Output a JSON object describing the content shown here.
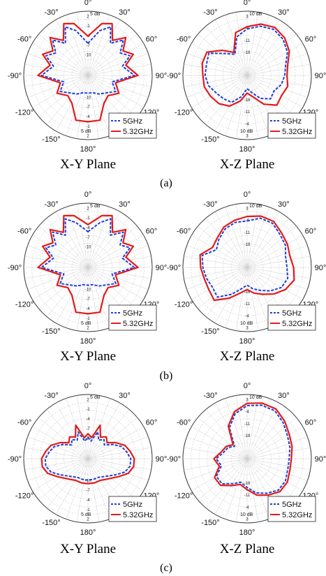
{
  "figure": {
    "row_labels": [
      "(a)",
      "(b)",
      "(c)"
    ],
    "plane_labels": [
      "X-Y  Plane",
      "X-Z  Plane"
    ],
    "angle_labels": [
      "0°",
      "30°",
      "60°",
      "90°",
      "120°",
      "180°",
      "-150°",
      "-120°",
      "-90°",
      "-60°",
      "-30°"
    ]
  },
  "chart_data": [
    {
      "type": "polar-line",
      "panel": "a",
      "plane": "X-Y  Plane",
      "r_unit_label": "5 dB",
      "r_tick_labels": [
        "2",
        "-1",
        "-4",
        "-7",
        "-10"
      ],
      "legend_placement": "bottom-right",
      "series": [
        {
          "name": "5GHz",
          "color": "#1f3fd6",
          "style": "dashed",
          "theta": [
            0,
            15,
            25,
            35,
            45,
            55,
            65,
            75,
            90,
            105,
            120,
            135,
            150,
            165,
            180,
            195,
            210,
            225,
            240,
            255,
            270,
            285,
            295,
            305,
            315,
            325,
            335,
            345
          ],
          "r_db": [
            -5,
            -1,
            1,
            -3,
            0,
            -3,
            -1,
            -4,
            -1,
            -7,
            -5,
            -7,
            -8,
            -9,
            -9,
            -9,
            -8,
            -7,
            -5,
            -7,
            -1,
            -4,
            -1,
            -3,
            0,
            -3,
            1,
            -1
          ]
        },
        {
          "name": "5.32GHz",
          "color": "#e21b1b",
          "style": "solid",
          "theta": [
            0,
            15,
            25,
            35,
            45,
            55,
            65,
            75,
            90,
            105,
            120,
            135,
            150,
            165,
            180,
            195,
            210,
            225,
            240,
            255,
            270,
            285,
            295,
            305,
            315,
            325,
            335,
            345
          ],
          "r_db": [
            -3,
            1,
            2,
            -2,
            1,
            -2,
            0,
            -3,
            0,
            -6,
            -4,
            -6,
            -5,
            -1,
            -1,
            -1,
            -5,
            -6,
            -4,
            -6,
            0,
            -3,
            0,
            -2,
            1,
            -2,
            2,
            1
          ]
        }
      ]
    },
    {
      "type": "polar-line",
      "panel": "a",
      "plane": "X-Z  Plane",
      "r_unit_label": "10 dB",
      "r_tick_labels": [
        "3",
        "-4",
        "-11",
        "-18"
      ],
      "legend_placement": "bottom-right",
      "series": [
        {
          "name": "5GHz",
          "color": "#1f3fd6",
          "style": "dashed",
          "theta": [
            0,
            15,
            30,
            45,
            60,
            75,
            90,
            105,
            120,
            135,
            150,
            165,
            180,
            195,
            210,
            225,
            240,
            255,
            270,
            285,
            300,
            315,
            330,
            345
          ],
          "r_db": [
            -3,
            -1,
            0,
            -1,
            -3,
            -6,
            -7,
            -8,
            -10,
            -9,
            -12,
            -16,
            -18,
            -14,
            -10,
            -9,
            -8,
            -6,
            -5,
            -5,
            -4,
            -10,
            -13,
            -6
          ]
        },
        {
          "name": "5.32GHz",
          "color": "#e21b1b",
          "style": "solid",
          "theta": [
            0,
            15,
            30,
            45,
            60,
            75,
            90,
            105,
            120,
            135,
            150,
            165,
            180,
            195,
            210,
            225,
            240,
            255,
            270,
            285,
            300,
            315,
            330,
            345
          ],
          "r_db": [
            -2,
            0,
            1,
            0,
            -2,
            -5,
            -6,
            -5,
            -6,
            -5,
            -9,
            -14,
            -16,
            -12,
            -8,
            -6,
            -5,
            -4,
            -4,
            -3,
            -3,
            -8,
            -12,
            -4
          ]
        }
      ]
    },
    {
      "type": "polar-line",
      "panel": "b",
      "plane": "X-Y  Plane",
      "r_unit_label": "5 dB",
      "r_tick_labels": [
        "2",
        "-1",
        "-4",
        "-7",
        "-10"
      ],
      "legend_placement": "bottom-right",
      "series": [
        {
          "name": "5GHz",
          "color": "#1f3fd6",
          "style": "dashed",
          "theta": [
            0,
            15,
            25,
            35,
            45,
            55,
            65,
            75,
            90,
            105,
            120,
            135,
            150,
            165,
            180,
            195,
            210,
            225,
            240,
            255,
            270,
            285,
            295,
            305,
            315,
            325,
            335,
            345
          ],
          "r_db": [
            -4,
            -1,
            1,
            -3,
            0,
            -3,
            -1,
            -4,
            -1,
            -7,
            -5,
            -7,
            -8,
            -9,
            -9,
            -9,
            -8,
            -7,
            -5,
            -7,
            -1,
            -4,
            -1,
            -3,
            0,
            -3,
            1,
            -1
          ]
        },
        {
          "name": "5.32GHz",
          "color": "#e21b1b",
          "style": "solid",
          "theta": [
            0,
            15,
            25,
            35,
            45,
            55,
            65,
            75,
            90,
            105,
            120,
            135,
            150,
            165,
            180,
            195,
            210,
            225,
            240,
            255,
            270,
            285,
            295,
            305,
            315,
            325,
            335,
            345
          ],
          "r_db": [
            -2,
            1,
            2,
            -2,
            1,
            -2,
            0,
            -3,
            0,
            -6,
            -4,
            -6,
            -5,
            -1,
            -1,
            -1,
            -5,
            -6,
            -4,
            -6,
            0,
            -3,
            0,
            -2,
            1,
            -2,
            2,
            1
          ]
        }
      ]
    },
    {
      "type": "polar-line",
      "panel": "b",
      "plane": "X-Z  Plane",
      "r_unit_label": "10 dB",
      "r_tick_labels": [
        "3",
        "-4",
        "-11",
        "-18"
      ],
      "legend_placement": "bottom-right",
      "series": [
        {
          "name": "5GHz",
          "color": "#1f3fd6",
          "style": "dashed",
          "theta": [
            0,
            15,
            30,
            45,
            60,
            75,
            90,
            105,
            120,
            135,
            150,
            165,
            180,
            195,
            210,
            225,
            240,
            255,
            270,
            285,
            300,
            315,
            330,
            345
          ],
          "r_db": [
            -3,
            -1,
            -1,
            -3,
            -4,
            -6,
            -6,
            -5,
            -6,
            -9,
            -12,
            -14,
            -16,
            -14,
            -10,
            -5,
            -6,
            -5,
            -4,
            -3,
            -8,
            -6,
            -4,
            -3
          ]
        },
        {
          "name": "5.32GHz",
          "color": "#e21b1b",
          "style": "solid",
          "theta": [
            0,
            15,
            30,
            45,
            60,
            75,
            90,
            105,
            120,
            135,
            150,
            165,
            180,
            195,
            210,
            225,
            240,
            255,
            270,
            285,
            300,
            315,
            330,
            345
          ],
          "r_db": [
            -1,
            0,
            0,
            -2,
            -3,
            -4,
            -3,
            -2,
            -4,
            -7,
            -10,
            -12,
            -14,
            -12,
            -8,
            -3,
            -4,
            -4,
            -3,
            -2,
            -6,
            -5,
            -3,
            -2
          ]
        }
      ]
    },
    {
      "type": "polar-line",
      "panel": "c",
      "plane": "X-Y  Plane",
      "r_unit_label": "5 dB",
      "r_tick_labels": [
        "2",
        "-1",
        "-4",
        "-7",
        "-10"
      ],
      "legend_placement": "bottom-right",
      "series": [
        {
          "name": "5GHz",
          "color": "#1f3fd6",
          "style": "dashed",
          "theta": [
            0,
            10,
            20,
            30,
            40,
            50,
            60,
            70,
            80,
            90,
            100,
            110,
            120,
            135,
            150,
            165,
            180,
            195,
            210,
            225,
            240,
            250,
            260,
            270,
            280,
            290,
            300,
            310,
            320,
            330,
            340,
            350
          ],
          "r_db": [
            -8,
            -9,
            -6,
            -8,
            -7,
            -8,
            -6,
            -4,
            -3,
            -2,
            -2,
            -3,
            -5,
            -7,
            -8,
            -8,
            -8,
            -8,
            -8,
            -7,
            -5,
            -3,
            -2,
            -2,
            -3,
            -4,
            -6,
            -8,
            -7,
            -8,
            -6,
            -9
          ]
        },
        {
          "name": "5.32GHz",
          "color": "#e21b1b",
          "style": "solid",
          "theta": [
            0,
            10,
            20,
            30,
            40,
            50,
            60,
            70,
            80,
            90,
            100,
            110,
            120,
            135,
            150,
            165,
            180,
            195,
            210,
            225,
            240,
            250,
            260,
            270,
            280,
            290,
            300,
            310,
            320,
            330,
            340,
            350
          ],
          "r_db": [
            -7,
            -8,
            -4,
            -7,
            -6,
            -7,
            -5,
            -3,
            -2,
            -1,
            -1,
            -2,
            -4,
            -6,
            -7,
            -7,
            -7,
            -7,
            -7,
            -6,
            -4,
            -2,
            -1,
            -1,
            -2,
            -3,
            -5,
            -7,
            -6,
            -7,
            -4,
            -8
          ]
        }
      ]
    },
    {
      "type": "polar-line",
      "panel": "c",
      "plane": "X-Z  Plane",
      "r_unit_label": "10 dB",
      "r_tick_labels": [
        "3",
        "-4",
        "-11",
        "-18"
      ],
      "legend_placement": "bottom-right",
      "series": [
        {
          "name": "5GHz",
          "color": "#1f3fd6",
          "style": "dashed",
          "theta": [
            0,
            15,
            30,
            45,
            60,
            75,
            90,
            105,
            120,
            135,
            150,
            165,
            180,
            195,
            210,
            225,
            240,
            255,
            270,
            285,
            300,
            315,
            330,
            345
          ],
          "r_db": [
            0,
            1,
            1,
            -1,
            -3,
            -4,
            -5,
            -5,
            -4,
            -4,
            -6,
            -8,
            -11,
            -13,
            -11,
            -8,
            -8,
            -12,
            -10,
            -13,
            -14,
            -16,
            -8,
            -3
          ]
        },
        {
          "name": "5.32GHz",
          "color": "#e21b1b",
          "style": "solid",
          "theta": [
            0,
            15,
            30,
            45,
            60,
            75,
            90,
            105,
            120,
            135,
            150,
            165,
            180,
            195,
            210,
            225,
            240,
            255,
            270,
            285,
            300,
            315,
            330,
            345
          ],
          "r_db": [
            1,
            2,
            2,
            0,
            -2,
            -3,
            -4,
            -4,
            -3,
            -3,
            -5,
            -7,
            -10,
            -12,
            -10,
            -7,
            -7,
            -11,
            -9,
            -12,
            -13,
            -15,
            -7,
            -2
          ]
        }
      ]
    }
  ]
}
